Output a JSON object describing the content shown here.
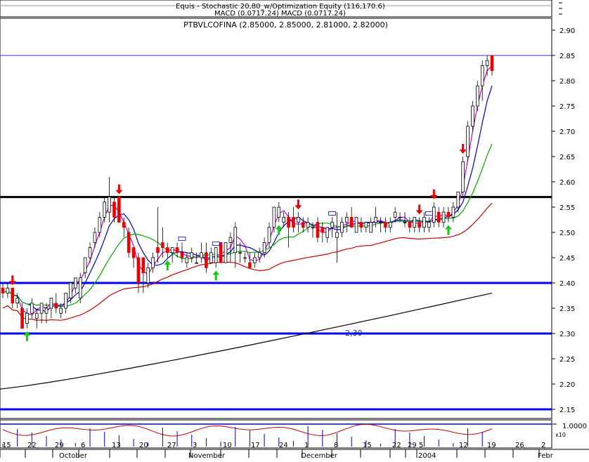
{
  "top_panel": {
    "title_line1": "Equis - Stochastic 20,80_w/Optimization Equity (116,170.6)",
    "title_line2": "MACD (0.0717.24) MACD (0.0717.24)"
  },
  "chart_data": {
    "type": "candlestick",
    "title": "PTBVLCOFINA (2.85000, 2.85000, 2.81000, 2.82000)",
    "ylim": [
      2.125,
      2.925
    ],
    "y_ticks": [
      "2.90",
      "2.85",
      "2.80",
      "2.75",
      "2.70",
      "2.65",
      "2.60",
      "2.55",
      "2.50",
      "2.45",
      "2.40",
      "2.35",
      "2.30",
      "2.25",
      "2.20",
      "2.15"
    ],
    "x_ticks": [
      "15",
      "22",
      "29",
      "6",
      "13",
      "20",
      "27",
      "3",
      "10",
      "17",
      "24",
      "1",
      "8",
      "15",
      "22",
      "29",
      "5",
      "12",
      "19",
      "26",
      "2"
    ],
    "month_labels": [
      "October",
      "November",
      "December",
      "2004",
      "Febr"
    ],
    "annotation": "2,30",
    "horizontal_lines": [
      {
        "y": 2.85,
        "color": "#3333cc",
        "width": 1
      },
      {
        "y": 2.57,
        "color": "#000000",
        "width": 3
      },
      {
        "y": 2.4,
        "color": "#0000ee",
        "width": 3
      },
      {
        "y": 2.3,
        "color": "#0000ee",
        "width": 3
      },
      {
        "y": 2.15,
        "color": "#0000ee",
        "width": 3
      }
    ],
    "candles": [
      {
        "o": 2.39,
        "h": 2.4,
        "l": 2.37,
        "c": 2.38
      },
      {
        "o": 2.38,
        "h": 2.4,
        "l": 2.37,
        "c": 2.39
      },
      {
        "o": 2.39,
        "h": 2.39,
        "l": 2.35,
        "c": 2.36
      },
      {
        "o": 2.36,
        "h": 2.38,
        "l": 2.35,
        "c": 2.37
      },
      {
        "o": 2.35,
        "h": 2.36,
        "l": 2.31,
        "c": 2.31
      },
      {
        "o": 2.32,
        "h": 2.35,
        "l": 2.31,
        "c": 2.34
      },
      {
        "o": 2.34,
        "h": 2.37,
        "l": 2.33,
        "c": 2.36
      },
      {
        "o": 2.33,
        "h": 2.35,
        "l": 2.31,
        "c": 2.34
      },
      {
        "o": 2.34,
        "h": 2.36,
        "l": 2.32,
        "c": 2.36
      },
      {
        "o": 2.34,
        "h": 2.36,
        "l": 2.32,
        "c": 2.35
      },
      {
        "o": 2.35,
        "h": 2.37,
        "l": 2.33,
        "c": 2.37
      },
      {
        "o": 2.36,
        "h": 2.38,
        "l": 2.34,
        "c": 2.35
      },
      {
        "o": 2.34,
        "h": 2.36,
        "l": 2.33,
        "c": 2.35
      },
      {
        "o": 2.35,
        "h": 2.38,
        "l": 2.34,
        "c": 2.38
      },
      {
        "o": 2.37,
        "h": 2.4,
        "l": 2.36,
        "c": 2.4
      },
      {
        "o": 2.39,
        "h": 2.41,
        "l": 2.38,
        "c": 2.41
      },
      {
        "o": 2.37,
        "h": 2.42,
        "l": 2.36,
        "c": 2.41
      },
      {
        "o": 2.42,
        "h": 2.45,
        "l": 2.41,
        "c": 2.45
      },
      {
        "o": 2.45,
        "h": 2.48,
        "l": 2.44,
        "c": 2.47
      },
      {
        "o": 2.48,
        "h": 2.51,
        "l": 2.47,
        "c": 2.5
      },
      {
        "o": 2.5,
        "h": 2.54,
        "l": 2.49,
        "c": 2.53
      },
      {
        "o": 2.53,
        "h": 2.57,
        "l": 2.52,
        "c": 2.56
      },
      {
        "o": 2.54,
        "h": 2.61,
        "l": 2.52,
        "c": 2.57
      },
      {
        "o": 2.56,
        "h": 2.57,
        "l": 2.52,
        "c": 2.53
      },
      {
        "o": 2.57,
        "h": 2.57,
        "l": 2.52,
        "c": 2.52
      },
      {
        "o": 2.52,
        "h": 2.53,
        "l": 2.49,
        "c": 2.51
      },
      {
        "o": 2.5,
        "h": 2.51,
        "l": 2.45,
        "c": 2.46
      },
      {
        "o": 2.47,
        "h": 2.47,
        "l": 2.43,
        "c": 2.45
      },
      {
        "o": 2.45,
        "h": 2.46,
        "l": 2.38,
        "c": 2.4
      },
      {
        "o": 2.45,
        "h": 2.45,
        "l": 2.38,
        "c": 2.42
      },
      {
        "o": 2.4,
        "h": 2.44,
        "l": 2.39,
        "c": 2.43
      },
      {
        "o": 2.43,
        "h": 2.46,
        "l": 2.42,
        "c": 2.45
      },
      {
        "o": 2.47,
        "h": 2.55,
        "l": 2.44,
        "c": 2.46
      },
      {
        "o": 2.48,
        "h": 2.51,
        "l": 2.45,
        "c": 2.47
      },
      {
        "o": 2.47,
        "h": 2.48,
        "l": 2.45,
        "c": 2.46
      },
      {
        "o": 2.46,
        "h": 2.47,
        "l": 2.44,
        "c": 2.47
      },
      {
        "o": 2.47,
        "h": 2.48,
        "l": 2.45,
        "c": 2.46
      },
      {
        "o": 2.46,
        "h": 2.48,
        "l": 2.44,
        "c": 2.45
      },
      {
        "o": 2.44,
        "h": 2.46,
        "l": 2.43,
        "c": 2.45
      },
      {
        "o": 2.45,
        "h": 2.47,
        "l": 2.44,
        "c": 2.46
      },
      {
        "o": 2.44,
        "h": 2.46,
        "l": 2.44,
        "c": 2.44
      },
      {
        "o": 2.45,
        "h": 2.48,
        "l": 2.44,
        "c": 2.46
      },
      {
        "o": 2.46,
        "h": 2.48,
        "l": 2.42,
        "c": 2.43
      },
      {
        "o": 2.44,
        "h": 2.47,
        "l": 2.44,
        "c": 2.46
      },
      {
        "o": 2.44,
        "h": 2.47,
        "l": 2.43,
        "c": 2.47
      },
      {
        "o": 2.48,
        "h": 2.48,
        "l": 2.44,
        "c": 2.44
      },
      {
        "o": 2.44,
        "h": 2.48,
        "l": 2.44,
        "c": 2.48
      },
      {
        "o": 2.48,
        "h": 2.5,
        "l": 2.44,
        "c": 2.49
      },
      {
        "o": 2.46,
        "h": 2.52,
        "l": 2.43,
        "c": 2.51
      },
      {
        "o": 2.46,
        "h": 2.48,
        "l": 2.44,
        "c": 2.46
      },
      {
        "o": 2.45,
        "h": 2.46,
        "l": 2.44,
        "c": 2.45
      },
      {
        "o": 2.44,
        "h": 2.46,
        "l": 2.43,
        "c": 2.43
      },
      {
        "o": 2.44,
        "h": 2.46,
        "l": 2.43,
        "c": 2.45
      },
      {
        "o": 2.45,
        "h": 2.47,
        "l": 2.44,
        "c": 2.46
      },
      {
        "o": 2.46,
        "h": 2.49,
        "l": 2.45,
        "c": 2.48
      },
      {
        "o": 2.48,
        "h": 2.52,
        "l": 2.47,
        "c": 2.51
      },
      {
        "o": 2.51,
        "h": 2.55,
        "l": 2.5,
        "c": 2.55
      },
      {
        "o": 2.53,
        "h": 2.56,
        "l": 2.52,
        "c": 2.55
      },
      {
        "o": 2.52,
        "h": 2.54,
        "l": 2.51,
        "c": 2.53
      },
      {
        "o": 2.53,
        "h": 2.54,
        "l": 2.47,
        "c": 2.51
      },
      {
        "o": 2.53,
        "h": 2.55,
        "l": 2.5,
        "c": 2.51
      },
      {
        "o": 2.52,
        "h": 2.54,
        "l": 2.5,
        "c": 2.53
      },
      {
        "o": 2.52,
        "h": 2.53,
        "l": 2.5,
        "c": 2.51
      },
      {
        "o": 2.51,
        "h": 2.53,
        "l": 2.5,
        "c": 2.52
      },
      {
        "o": 2.51,
        "h": 2.52,
        "l": 2.49,
        "c": 2.51
      },
      {
        "o": 2.52,
        "h": 2.53,
        "l": 2.48,
        "c": 2.49
      },
      {
        "o": 2.51,
        "h": 2.52,
        "l": 2.48,
        "c": 2.5
      },
      {
        "o": 2.49,
        "h": 2.51,
        "l": 2.48,
        "c": 2.51
      },
      {
        "o": 2.51,
        "h": 2.53,
        "l": 2.49,
        "c": 2.52
      },
      {
        "o": 2.49,
        "h": 2.54,
        "l": 2.44,
        "c": 2.5
      },
      {
        "o": 2.5,
        "h": 2.53,
        "l": 2.49,
        "c": 2.52
      },
      {
        "o": 2.52,
        "h": 2.54,
        "l": 2.5,
        "c": 2.53
      },
      {
        "o": 2.53,
        "h": 2.55,
        "l": 2.51,
        "c": 2.51
      },
      {
        "o": 2.5,
        "h": 2.53,
        "l": 2.5,
        "c": 2.53
      },
      {
        "o": 2.52,
        "h": 2.53,
        "l": 2.5,
        "c": 2.51
      },
      {
        "o": 2.51,
        "h": 2.52,
        "l": 2.5,
        "c": 2.52
      },
      {
        "o": 2.5,
        "h": 2.53,
        "l": 2.5,
        "c": 2.52
      },
      {
        "o": 2.52,
        "h": 2.55,
        "l": 2.51,
        "c": 2.53
      },
      {
        "o": 2.52,
        "h": 2.53,
        "l": 2.5,
        "c": 2.52
      },
      {
        "o": 2.52,
        "h": 2.53,
        "l": 2.5,
        "c": 2.51
      },
      {
        "o": 2.51,
        "h": 2.53,
        "l": 2.5,
        "c": 2.52
      },
      {
        "o": 2.53,
        "h": 2.55,
        "l": 2.52,
        "c": 2.54
      },
      {
        "o": 2.53,
        "h": 2.54,
        "l": 2.52,
        "c": 2.53
      },
      {
        "o": 2.52,
        "h": 2.54,
        "l": 2.51,
        "c": 2.52
      },
      {
        "o": 2.52,
        "h": 2.53,
        "l": 2.5,
        "c": 2.51
      },
      {
        "o": 2.51,
        "h": 2.53,
        "l": 2.5,
        "c": 2.53
      },
      {
        "o": 2.52,
        "h": 2.53,
        "l": 2.5,
        "c": 2.51
      },
      {
        "o": 2.51,
        "h": 2.54,
        "l": 2.5,
        "c": 2.53
      },
      {
        "o": 2.51,
        "h": 2.53,
        "l": 2.5,
        "c": 2.52
      },
      {
        "o": 2.52,
        "h": 2.56,
        "l": 2.51,
        "c": 2.55
      },
      {
        "o": 2.54,
        "h": 2.55,
        "l": 2.51,
        "c": 2.52
      },
      {
        "o": 2.52,
        "h": 2.55,
        "l": 2.51,
        "c": 2.54
      },
      {
        "o": 2.54,
        "h": 2.55,
        "l": 2.52,
        "c": 2.53
      },
      {
        "o": 2.53,
        "h": 2.56,
        "l": 2.52,
        "c": 2.55
      },
      {
        "o": 2.55,
        "h": 2.58,
        "l": 2.54,
        "c": 2.58
      },
      {
        "o": 2.58,
        "h": 2.65,
        "l": 2.57,
        "c": 2.64
      },
      {
        "o": 2.65,
        "h": 2.72,
        "l": 2.64,
        "c": 2.71
      },
      {
        "o": 2.71,
        "h": 2.76,
        "l": 2.7,
        "c": 2.75
      },
      {
        "o": 2.75,
        "h": 2.8,
        "l": 2.74,
        "c": 2.79
      },
      {
        "o": 2.79,
        "h": 2.84,
        "l": 2.76,
        "c": 2.83
      },
      {
        "o": 2.83,
        "h": 2.85,
        "l": 2.81,
        "c": 2.84
      },
      {
        "o": 2.85,
        "h": 2.85,
        "l": 2.81,
        "c": 2.82
      }
    ],
    "signals": {
      "sell_arrows": [
        2,
        24,
        61,
        86,
        89,
        95
      ],
      "buy_arrows": [
        5,
        34,
        44,
        57,
        92
      ]
    },
    "lower_panel": {
      "label": "1.0000",
      "scale_note": "x10"
    }
  }
}
